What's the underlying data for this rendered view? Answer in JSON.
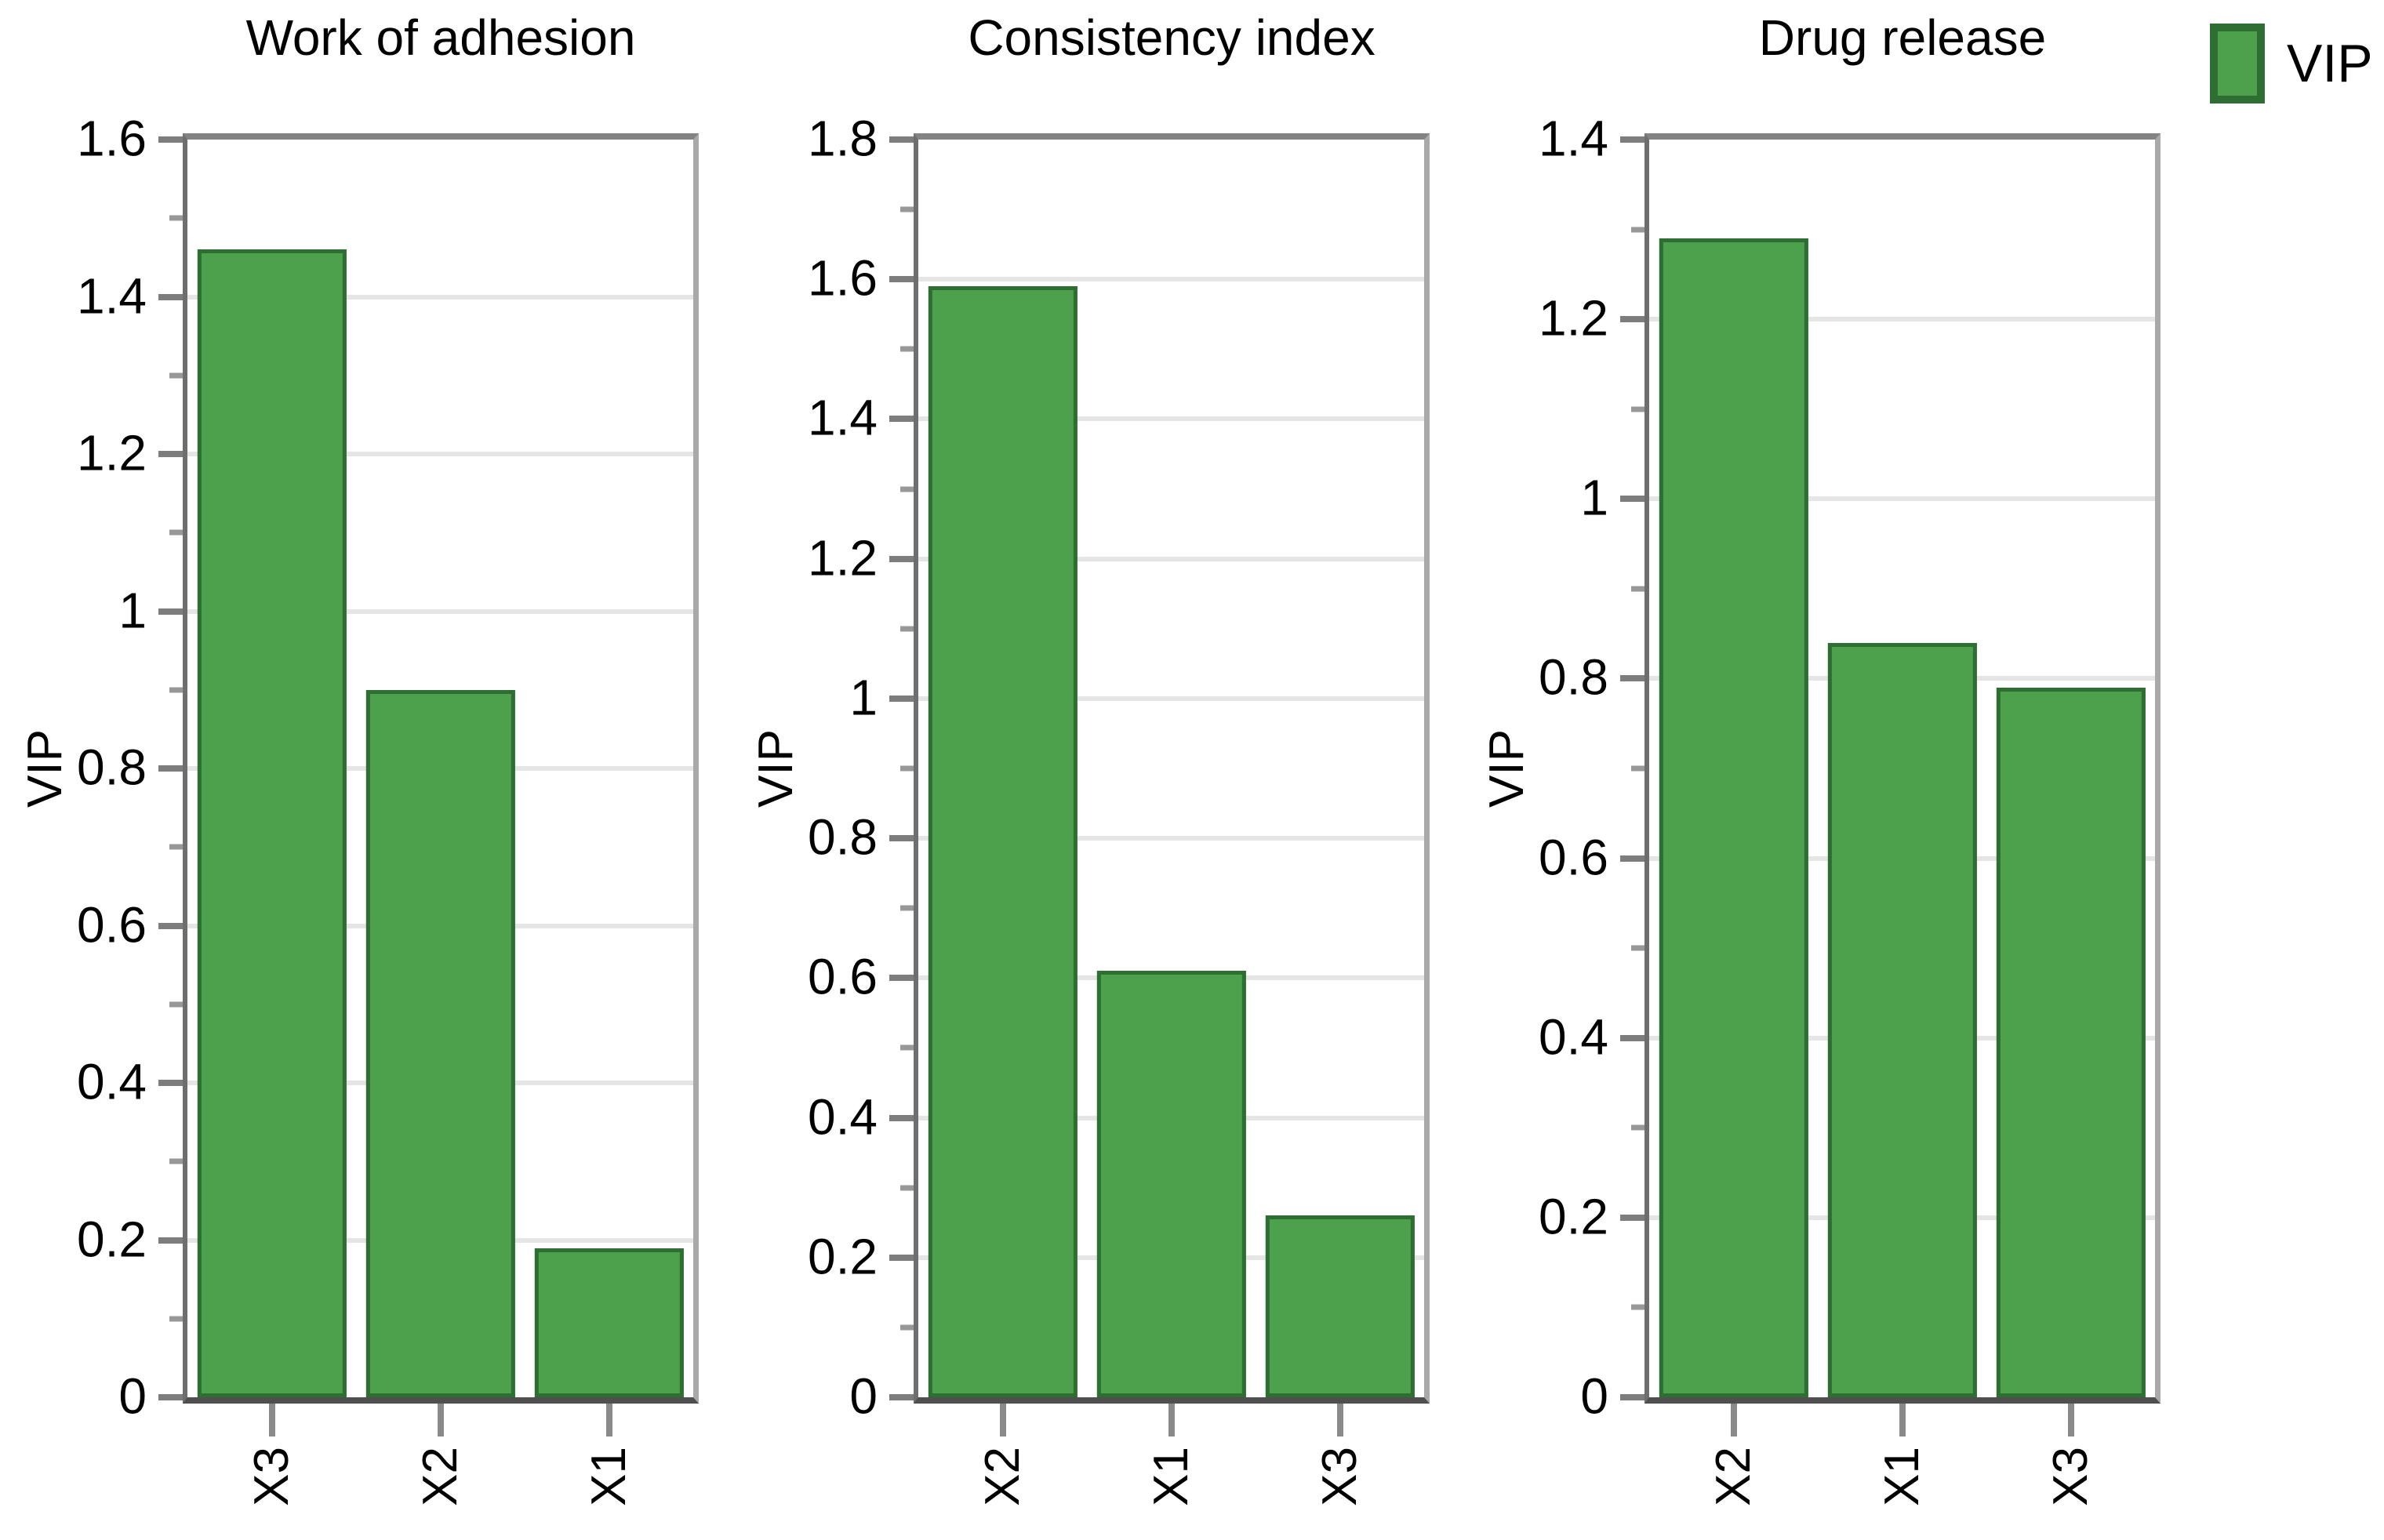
{
  "legend": {
    "label": "VIP",
    "position": "outside-top-right"
  },
  "colors": {
    "bar_fill": "#4da14d",
    "bar_border": "#2f6e33",
    "gridline": "#e5e5e5",
    "axis_frame": "#8a8a8a",
    "text": "#000000"
  },
  "chart_data": [
    {
      "type": "bar",
      "title": "Work of adhesion",
      "ylabel": "VIP",
      "xlabel": "",
      "categories": [
        "X3",
        "X2",
        "X1"
      ],
      "values": [
        1.46,
        0.9,
        0.19
      ],
      "ylim": [
        0,
        1.6
      ],
      "ytick_step": 0.2,
      "yminor_step": 0.1,
      "grid": "horizontal-major",
      "xticklabel_rotation": 90
    },
    {
      "type": "bar",
      "title": "Consistency index",
      "ylabel": "VIP",
      "xlabel": "",
      "categories": [
        "X2",
        "X1",
        "X3"
      ],
      "values": [
        1.59,
        0.61,
        0.26
      ],
      "ylim": [
        0,
        1.8
      ],
      "ytick_step": 0.2,
      "yminor_step": 0.1,
      "grid": "horizontal-major",
      "xticklabel_rotation": 90
    },
    {
      "type": "bar",
      "title": "Drug release",
      "ylabel": "VIP",
      "xlabel": "",
      "categories": [
        "X2",
        "X1",
        "X3"
      ],
      "values": [
        1.29,
        0.84,
        0.79
      ],
      "ylim": [
        0,
        1.4
      ],
      "ytick_step": 0.2,
      "yminor_step": 0.1,
      "grid": "horizontal-major",
      "xticklabel_rotation": 90
    }
  ]
}
